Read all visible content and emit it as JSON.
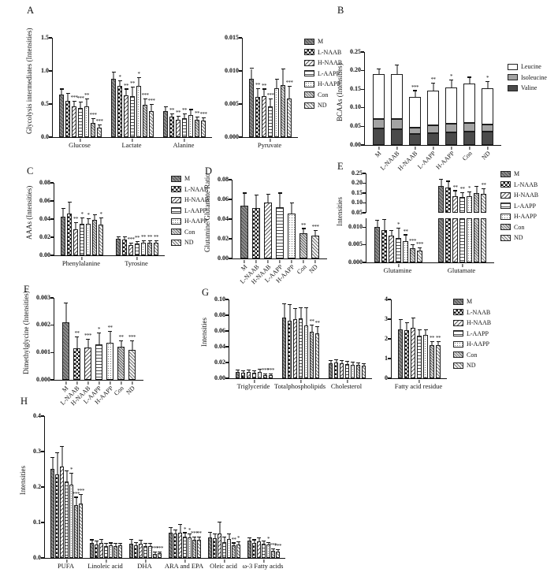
{
  "groups": [
    "M",
    "L-NAAB",
    "H-NAAB",
    "L-AAPP",
    "H-AAPP",
    "Con",
    "ND"
  ],
  "patterns": {
    "M": "diagdark",
    "L-NAAB": "checker",
    "H-NAAB": "diag",
    "L-AAPP": "horiz",
    "H-AAPP": "dots",
    "Con": "weave",
    "ND": "diag2"
  },
  "chart_data": [
    {
      "panel": "A",
      "type": "grouped-multi",
      "ylabel": "Glycolysis intermediates (Intensities)",
      "legend": "groups",
      "subplots": [
        {
          "categories": [
            "Glucose",
            "Lactate",
            "Alanine"
          ],
          "ylim": [
            0,
            1.5
          ],
          "yticks": [
            "0.0",
            "0.5",
            "1.0",
            "1.5"
          ],
          "values": [
            [
              0.64,
              0.55,
              0.47,
              0.44,
              0.47,
              0.22,
              0.14
            ],
            [
              0.88,
              0.77,
              0.63,
              0.62,
              0.77,
              0.49,
              0.39
            ],
            [
              0.39,
              0.31,
              0.26,
              0.28,
              0.33,
              0.26,
              0.25
            ]
          ],
          "errors": [
            [
              0.08,
              0.1,
              0.07,
              0.08,
              0.1,
              0.05,
              0.04
            ],
            [
              0.1,
              0.08,
              0.09,
              0.13,
              0.12,
              0.08,
              0.1
            ],
            [
              0.06,
              0.04,
              0.05,
              0.06,
              0.08,
              0.04,
              0.04
            ]
          ],
          "sig": [
            [
              "",
              "",
              "***",
              "***",
              "**",
              "***",
              "***"
            ],
            [
              "",
              "*",
              "**",
              "**",
              "*",
              "***",
              "***"
            ],
            [
              "",
              "**",
              "**",
              "**",
              "",
              "**",
              "***"
            ]
          ]
        },
        {
          "categories": [
            "Pyruvate"
          ],
          "ylim": [
            0,
            0.015
          ],
          "yticks": [
            "0.000",
            "0.005",
            "0.010",
            "0.015"
          ],
          "values": [
            [
              0.0088,
              0.0061,
              0.0062,
              0.0047,
              0.0074,
              0.0078,
              0.0058
            ]
          ],
          "errors": [
            [
              0.0015,
              0.0012,
              0.001,
              0.001,
              0.0013,
              0.0024,
              0.0018
            ]
          ],
          "sig": [
            [
              "",
              "**",
              "**",
              "***",
              "",
              "",
              "***"
            ]
          ]
        }
      ]
    },
    {
      "panel": "B",
      "type": "stacked",
      "ylabel": "BCAAs (Intensities)",
      "ylim": [
        0,
        0.25
      ],
      "yticks": [
        "0.00",
        "0.05",
        "0.10",
        "0.15",
        "0.20",
        "0.25"
      ],
      "series": [
        {
          "name": "Valine",
          "shade": "dark",
          "values": [
            0.044,
            0.043,
            0.029,
            0.032,
            0.034,
            0.037,
            0.035
          ],
          "errors": [
            0.004,
            0.005,
            0.004,
            0.004,
            0.005,
            0.005,
            0.004
          ],
          "sig": [
            "",
            "",
            "***",
            "**",
            "*",
            "",
            "*"
          ]
        },
        {
          "name": "Isoleucine",
          "shade": "mid",
          "values": [
            0.026,
            0.027,
            0.018,
            0.021,
            0.024,
            0.023,
            0.02
          ],
          "errors": [
            0.004,
            0.005,
            0.004,
            0.004,
            0.006,
            0.005,
            0.005
          ],
          "sig": [
            "",
            "",
            "***",
            "**",
            "",
            "*",
            "**"
          ]
        },
        {
          "name": "Leucine",
          "shade": "white",
          "values": [
            0.121,
            0.121,
            0.082,
            0.094,
            0.097,
            0.105,
            0.097
          ],
          "errors": [
            0.013,
            0.022,
            0.016,
            0.018,
            0.019,
            0.016,
            0.017
          ],
          "sig": [
            "",
            "",
            "***",
            "**",
            "*",
            "",
            "*"
          ]
        }
      ],
      "legend": [
        {
          "label": "Leucine",
          "shade": "white"
        },
        {
          "label": "Isoleucine",
          "shade": "mid"
        },
        {
          "label": "Valine",
          "shade": "dark"
        }
      ]
    },
    {
      "panel": "C",
      "type": "grouped-multi",
      "ylabel": "AAAs (Intensities)",
      "legend": "groups",
      "subplots": [
        {
          "categories": [
            "Phenylalanine",
            "Tyrosine"
          ],
          "ylim": [
            0,
            0.08
          ],
          "yticks": [
            "0.00",
            "0.02",
            "0.04",
            "0.06",
            "0.08"
          ],
          "values": [
            [
              0.043,
              0.046,
              0.029,
              0.035,
              0.035,
              0.039,
              0.034
            ],
            [
              0.018,
              0.017,
              0.011,
              0.013,
              0.014,
              0.014,
              0.014
            ]
          ],
          "errors": [
            [
              0.008,
              0.012,
              0.007,
              0.006,
              0.005,
              0.005,
              0.007
            ],
            [
              0.002,
              0.003,
              0.002,
              0.002,
              0.002,
              0.002,
              0.002
            ]
          ],
          "sig": [
            [
              "",
              "",
              "**",
              "*",
              "*",
              "",
              "*"
            ],
            [
              "",
              "",
              "***",
              "**",
              "**",
              "**",
              "**"
            ]
          ]
        }
      ]
    },
    {
      "panel": "D",
      "type": "single",
      "ylabel": "Glutamine/Glutamate Ratio",
      "ylim": [
        0,
        0.08
      ],
      "yticks": [
        "0.00",
        "0.02",
        "0.04",
        "0.06",
        "0.08"
      ],
      "values": [
        0.054,
        0.051,
        0.057,
        0.052,
        0.046,
        0.026,
        0.023
      ],
      "errors": [
        0.012,
        0.013,
        0.008,
        0.014,
        0.01,
        0.004,
        0.005
      ],
      "sig": [
        "",
        "",
        "",
        "",
        "",
        "**",
        "***"
      ]
    },
    {
      "panel": "E",
      "type": "broken",
      "ylabel": "Intensities",
      "legend": "groups",
      "categories": [
        "Glutamine",
        "Glutamate"
      ],
      "values": [
        [
          0.01,
          0.0091,
          0.0075,
          0.0069,
          0.0061,
          0.004,
          0.0033
        ],
        [
          0.187,
          0.178,
          0.135,
          0.13,
          0.133,
          0.152,
          0.145
        ]
      ],
      "errors": [
        [
          0.0018,
          0.003,
          0.0015,
          0.0026,
          0.0016,
          0.0009,
          0.0007
        ],
        [
          0.03,
          0.03,
          0.025,
          0.02,
          0.022,
          0.03,
          0.025
        ]
      ],
      "sig": [
        [
          "",
          "",
          "",
          "*",
          "**",
          "***",
          "***"
        ],
        [
          "",
          "",
          "**",
          "**",
          "*",
          "",
          "**"
        ]
      ],
      "top": {
        "ylim": [
          0.05,
          0.25
        ],
        "yticks": [
          "0.05",
          "0.10",
          "0.15",
          "0.20",
          "0.25"
        ]
      },
      "bottom": {
        "ylim": [
          0,
          0.0125
        ],
        "yticks": [
          "0.000",
          "0.005",
          "0.010"
        ]
      }
    },
    {
      "panel": "F",
      "type": "single",
      "ylabel": "Dimethylglycine (Intensities)",
      "ylim": [
        0,
        0.003
      ],
      "yticks": [
        "0.000",
        "0.001",
        "0.002",
        "0.003"
      ],
      "values": [
        0.0021,
        0.00115,
        0.00117,
        0.0013,
        0.00135,
        0.0012,
        0.0011
      ],
      "errors": [
        0.0007,
        0.0004,
        0.0003,
        0.0004,
        0.0004,
        0.0002,
        0.0003
      ],
      "sig": [
        "",
        "**",
        "***",
        "*",
        "**",
        "**",
        "***"
      ]
    },
    {
      "panel": "G",
      "type": "grouped-multi",
      "ylabel": "Intensities",
      "legend": "groups",
      "subplots": [
        {
          "categories": [
            "Triglyceride",
            "Totalphospholipids",
            "Cholesterol"
          ],
          "ylim": [
            0,
            0.1
          ],
          "yticks": [
            "0.00",
            "0.02",
            "0.04",
            "0.06",
            "0.08",
            "0.10"
          ],
          "values": [
            [
              0.008,
              0.007,
              0.008,
              0.007,
              0.008,
              0.004,
              0.004
            ],
            [
              0.077,
              0.073,
              0.075,
              0.076,
              0.067,
              0.059,
              0.057
            ],
            [
              0.019,
              0.02,
              0.019,
              0.018,
              0.017,
              0.017,
              0.016
            ]
          ],
          "errors": [
            [
              0.002,
              0.002,
              0.002,
              0.002,
              0.003,
              0.001,
              0.001
            ],
            [
              0.017,
              0.02,
              0.013,
              0.013,
              0.022,
              0.008,
              0.008
            ],
            [
              0.003,
              0.003,
              0.003,
              0.003,
              0.003,
              0.002,
              0.002
            ]
          ],
          "sig": [
            [
              "",
              "",
              "",
              "",
              "",
              "***",
              "***"
            ],
            [
              "",
              "",
              "",
              "",
              "",
              "**",
              "**"
            ],
            [
              "",
              "",
              "",
              "",
              "",
              "",
              ""
            ]
          ]
        },
        {
          "categories": [
            "Fatty acid residue"
          ],
          "ylim": [
            0,
            4
          ],
          "yticks": [
            "0",
            "1",
            "2",
            "3",
            "4"
          ],
          "values": [
            [
              2.5,
              2.45,
              2.55,
              2.15,
              2.2,
              1.7,
              1.7
            ]
          ],
          "errors": [
            [
              0.45,
              0.35,
              0.5,
              0.3,
              0.25,
              0.15,
              0.15
            ]
          ],
          "sig": [
            [
              "",
              "",
              "",
              "",
              "",
              "**",
              "**"
            ]
          ]
        }
      ]
    },
    {
      "panel": "H",
      "type": "grouped-multi",
      "ylabel": "Intensities",
      "subplots": [
        {
          "categories": [
            "PUFA",
            "Linoleic acid",
            "DHA",
            "ARA and EPA",
            "Oleic acid",
            "ω-3 Fatty acids"
          ],
          "ylim": [
            0,
            0.4
          ],
          "yticks": [
            "0.0",
            "0.1",
            "0.2",
            "0.3",
            "0.4"
          ],
          "values": [
            [
              0.252,
              0.235,
              0.258,
              0.215,
              0.207,
              0.15,
              0.153
            ],
            [
              0.042,
              0.038,
              0.042,
              0.033,
              0.035,
              0.034,
              0.035
            ],
            [
              0.04,
              0.035,
              0.04,
              0.033,
              0.033,
              0.012,
              0.013
            ],
            [
              0.072,
              0.068,
              0.072,
              0.06,
              0.058,
              0.051,
              0.051
            ],
            [
              0.057,
              0.055,
              0.068,
              0.045,
              0.054,
              0.035,
              0.038
            ],
            [
              0.048,
              0.043,
              0.047,
              0.04,
              0.037,
              0.02,
              0.018
            ]
          ],
          "errors": [
            [
              0.03,
              0.06,
              0.055,
              0.03,
              0.03,
              0.02,
              0.025
            ],
            [
              0.008,
              0.008,
              0.01,
              0.006,
              0.006,
              0.005,
              0.005
            ],
            [
              0.012,
              0.008,
              0.008,
              0.006,
              0.006,
              0.003,
              0.003
            ],
            [
              0.012,
              0.01,
              0.022,
              0.01,
              0.008,
              0.006,
              0.006
            ],
            [
              0.015,
              0.012,
              0.032,
              0.012,
              0.012,
              0.006,
              0.006
            ],
            [
              0.008,
              0.007,
              0.008,
              0.007,
              0.006,
              0.004,
              0.004
            ]
          ],
          "sig": [
            [
              "",
              "",
              "",
              "",
              "*",
              "***",
              "***"
            ],
            [
              "",
              "",
              "",
              "",
              "",
              "",
              ""
            ],
            [
              "",
              "",
              "",
              "",
              "",
              "***",
              "***"
            ],
            [
              "",
              "",
              "",
              "*",
              "*",
              "***",
              "**"
            ],
            [
              "",
              "",
              "",
              "",
              "",
              "**",
              "*"
            ],
            [
              "",
              "",
              "",
              "",
              "*",
              "***",
              "***"
            ]
          ]
        }
      ]
    }
  ]
}
